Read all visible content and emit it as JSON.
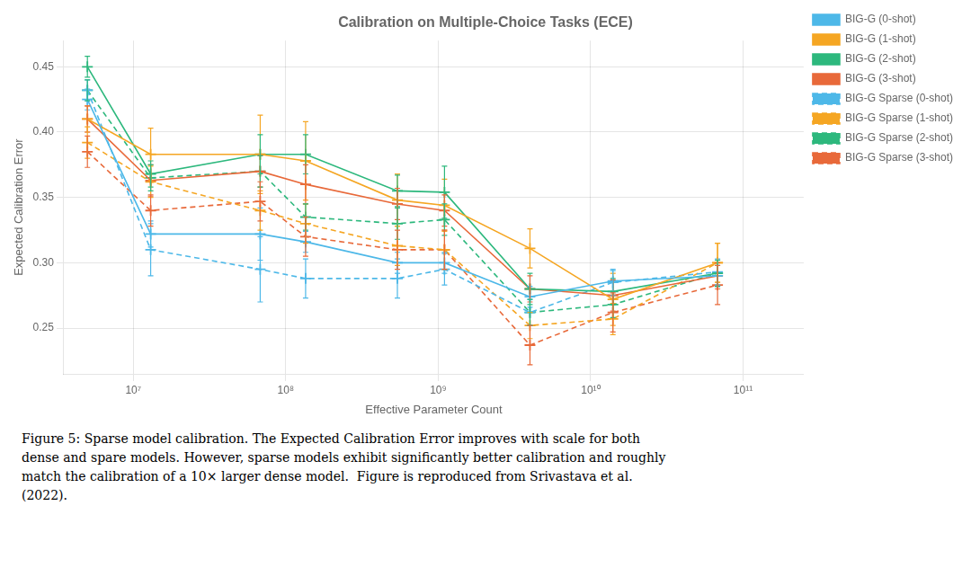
{
  "chart_data": {
    "type": "line",
    "title": "Calibration on Multiple-Choice Tasks (ECE)",
    "x_label": "Effective Parameter Count",
    "y_label": "Expected Calibration Error",
    "log": "x",
    "grid": true,
    "legend": "upper right",
    "xlim": [
      3500000.0,
      250000000000.0
    ],
    "xticks": [
      {
        "value": 10000000.0,
        "label": "10⁷"
      },
      {
        "value": 100000000.0,
        "label": "10⁸"
      },
      {
        "value": 1000000000.0,
        "label": "10⁹"
      },
      {
        "value": 10000000000.0,
        "label": "10¹⁰"
      },
      {
        "value": 100000000000.0,
        "label": "10¹¹"
      }
    ],
    "ylim": [
      0.215,
      0.47
    ],
    "yticks": [
      0.25,
      {
        "value": 0.3,
        "label": "0.30"
      },
      0.35,
      {
        "value": 0.4,
        "label": "0.40"
      },
      0.45
    ],
    "x": [
      5000000.0,
      13000000.0,
      68000000.0,
      135000000.0,
      540000000.0,
      1100000000.0,
      4000000000.0,
      14000000000.0,
      68000000000.0
    ],
    "series": [
      {
        "name": "BIG-G (0-shot)",
        "color": "#4db8e8",
        "line_style": "solid",
        "marker": "+",
        "values": [
          0.425,
          0.322,
          0.322,
          0.316,
          0.3,
          0.3,
          0.274,
          0.286,
          0.29
        ],
        "errors": [
          0.008,
          0.01,
          0.02,
          0.008,
          0.008,
          0.008,
          0.008,
          0.008,
          0.008
        ]
      },
      {
        "name": "BIG-G (1-shot)",
        "color": "#f5a623",
        "line_style": "solid",
        "marker": "+",
        "values": [
          0.41,
          0.383,
          0.383,
          0.378,
          0.348,
          0.344,
          0.311,
          0.272,
          0.3
        ],
        "errors": [
          0.01,
          0.02,
          0.03,
          0.03,
          0.02,
          0.02,
          0.015,
          0.02,
          0.015
        ]
      },
      {
        "name": "BIG-G (2-shot)",
        "color": "#2db87d",
        "line_style": "solid",
        "marker": "+",
        "values": [
          0.45,
          0.368,
          0.383,
          0.383,
          0.355,
          0.354,
          0.28,
          0.278,
          0.292
        ],
        "errors": [
          0.008,
          0.01,
          0.015,
          0.015,
          0.012,
          0.02,
          0.012,
          0.01,
          0.01
        ]
      },
      {
        "name": "BIG-G (3-shot)",
        "color": "#e8693a",
        "line_style": "solid",
        "marker": "+",
        "values": [
          0.41,
          0.363,
          0.37,
          0.36,
          0.345,
          0.34,
          0.28,
          0.275,
          0.29
        ],
        "errors": [
          0.01,
          0.012,
          0.012,
          0.015,
          0.012,
          0.012,
          0.01,
          0.012,
          0.01
        ]
      },
      {
        "name": "BIG-G Sparse (0-shot)",
        "color": "#4db8e8",
        "line_style": "dashed",
        "marker": "+",
        "values": [
          0.432,
          0.31,
          0.295,
          0.288,
          0.288,
          0.295,
          0.262,
          0.285,
          0.293
        ],
        "errors": [
          0.008,
          0.02,
          0.025,
          0.015,
          0.015,
          0.012,
          0.01,
          0.01,
          0.01
        ]
      },
      {
        "name": "BIG-G Sparse (1-shot)",
        "color": "#f5a623",
        "line_style": "dashed",
        "marker": "+",
        "values": [
          0.392,
          0.362,
          0.34,
          0.33,
          0.313,
          0.31,
          0.252,
          0.257,
          0.3
        ],
        "errors": [
          0.012,
          0.012,
          0.015,
          0.015,
          0.015,
          0.015,
          0.01,
          0.012,
          0.015
        ]
      },
      {
        "name": "BIG-G Sparse (2-shot)",
        "color": "#2db87d",
        "line_style": "dashed",
        "marker": "+",
        "values": [
          0.432,
          0.365,
          0.37,
          0.335,
          0.33,
          0.333,
          0.262,
          0.268,
          0.292
        ],
        "errors": [
          0.008,
          0.01,
          0.012,
          0.01,
          0.012,
          0.012,
          0.01,
          0.01,
          0.01
        ]
      },
      {
        "name": "BIG-G Sparse (3-shot)",
        "color": "#e8693a",
        "line_style": "dashed",
        "marker": "+",
        "values": [
          0.385,
          0.34,
          0.347,
          0.32,
          0.31,
          0.31,
          0.237,
          0.262,
          0.283
        ],
        "errors": [
          0.012,
          0.012,
          0.015,
          0.015,
          0.015,
          0.015,
          0.015,
          0.015,
          0.015
        ]
      }
    ],
    "annotations": [
      "Figure 5: Sparse model calibration. The Expected Calibration Error improves with scale for both",
      "dense and spare models. However, sparse models exhibit significantly better calibration and roughly",
      "match the calibration of a 10× larger dense model.  Figure is reproduced from Srivastava et al.",
      "(2022)."
    ]
  }
}
